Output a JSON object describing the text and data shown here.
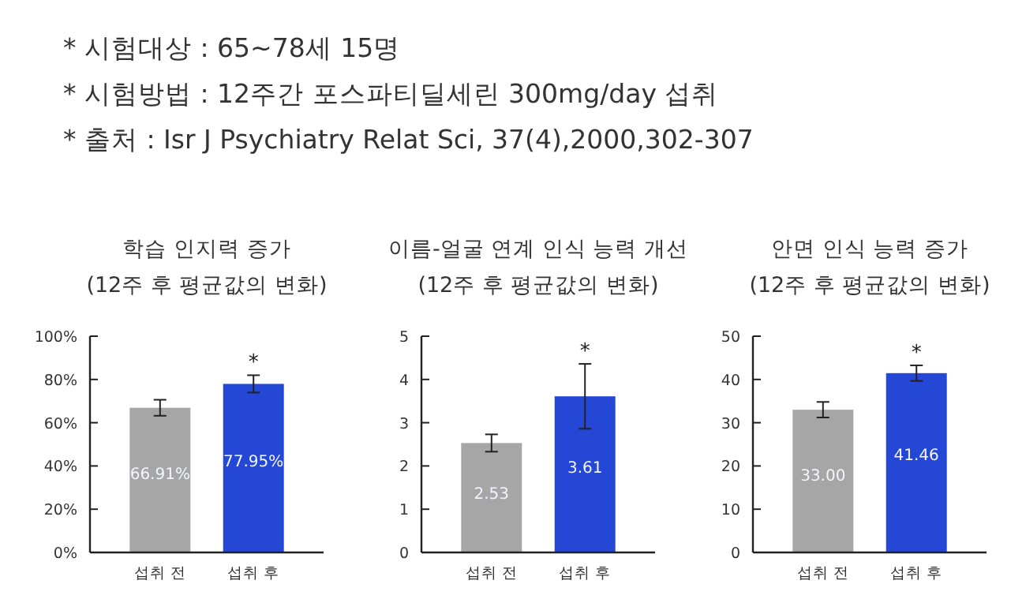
{
  "chart_data": [
    {
      "type": "bar",
      "title": "학습 인지력 증가",
      "subtitle": "(12주 후 평균값의 변화)",
      "categories": [
        "섭취 전",
        "섭취 후"
      ],
      "values": [
        66.91,
        77.95
      ],
      "colors": [
        "#a6a6a6",
        "#2447d6"
      ],
      "errors": [
        3.7,
        4
      ],
      "value_labels": [
        "66.91%",
        "77.95%"
      ],
      "ylim": [
        0,
        100
      ],
      "yticks": [
        {
          "value": 0,
          "label": "0%"
        },
        {
          "value": 20,
          "label": "20%"
        },
        {
          "value": 40,
          "label": "40%"
        },
        {
          "value": 60,
          "label": "60%"
        },
        {
          "value": 80,
          "label": "80%"
        },
        {
          "value": 100,
          "label": "100%"
        }
      ],
      "annotations": [
        "* 시험대상 : 65~78세 15명",
        "* 시험방법 : 12주간 포스파티딜세린 300mg/day 섭취",
        "* 출처 : Isr J Psychiatry Relat Sci, 37(4),2000,302-307",
        {
          "text": "*",
          "x": "섭취 후",
          "y": 77.95
        }
      ]
    },
    {
      "type": "bar",
      "title": "이름-얼굴 연계 인식 능력 개선",
      "subtitle": "(12주 후 평균값의 변화)",
      "categories": [
        "섭취 전",
        "섭취 후"
      ],
      "values": [
        2.53,
        3.61
      ],
      "colors": [
        "#a6a6a6",
        "#2447d6"
      ],
      "errors": [
        0.2,
        0.75
      ],
      "value_labels": [
        "2.53",
        "3.61"
      ],
      "ylim": [
        0,
        5
      ],
      "yticks": [
        0,
        1,
        2,
        3,
        4,
        5
      ],
      "annotations": [
        {
          "text": "*",
          "x": "섭취 후",
          "y": 3.61
        }
      ]
    },
    {
      "type": "bar",
      "title": "안면 인식 능력 증가",
      "subtitle": "(12주 후 평균값의 변화)",
      "categories": [
        "섭취 전",
        "섭취 후"
      ],
      "values": [
        33,
        41.46
      ],
      "colors": [
        "#a6a6a6",
        "#2447d6"
      ],
      "errors": [
        1.8,
        1.8
      ],
      "value_labels": [
        "33.00",
        "41.46"
      ],
      "ylim": [
        0,
        50
      ],
      "yticks": [
        0,
        10,
        20,
        30,
        40,
        50
      ],
      "annotations": [
        {
          "text": "*",
          "x": "섭취 후",
          "y": 41.46
        }
      ]
    }
  ]
}
